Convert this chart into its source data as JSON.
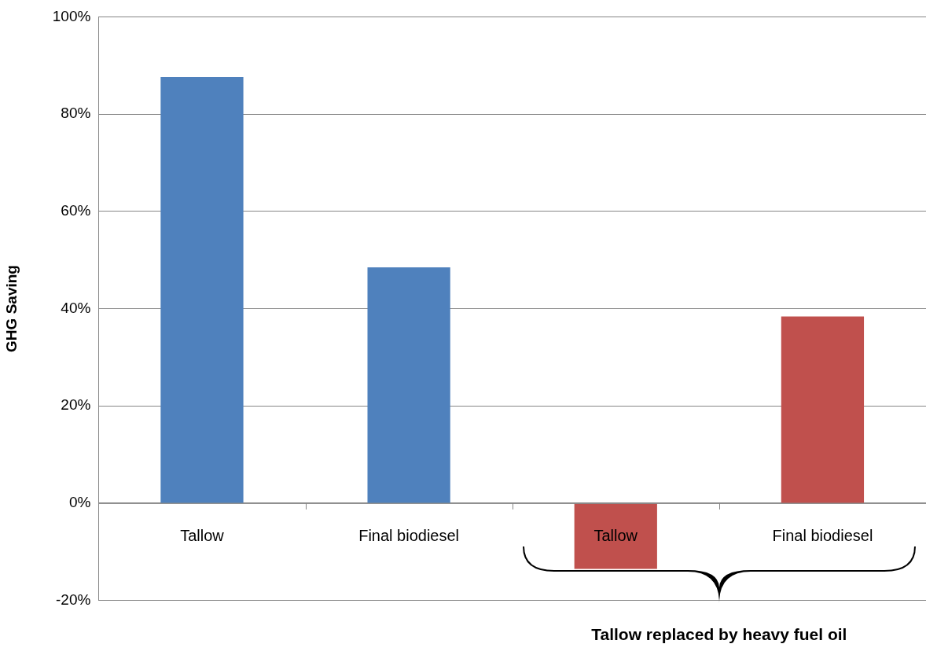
{
  "chart_data": {
    "type": "bar",
    "ylabel": "GHG Saving",
    "categories": [
      "Tallow",
      "Final biodiesel",
      "Tallow",
      "Final biodiesel"
    ],
    "values": [
      87.6,
      48.5,
      -13.5,
      38.4
    ],
    "colors": [
      "#4f81bd",
      "#4f81bd",
      "#c0504d",
      "#c0504d"
    ],
    "ylim": [
      -20,
      100
    ],
    "yticks": [
      {
        "value": -20,
        "label": "-20%"
      },
      {
        "value": 0,
        "label": "0%"
      },
      {
        "value": 20,
        "label": "20%"
      },
      {
        "value": 40,
        "label": "40%"
      },
      {
        "value": 60,
        "label": "60%"
      },
      {
        "value": 80,
        "label": "80%"
      },
      {
        "value": 100,
        "label": "100%"
      }
    ],
    "grid": "y",
    "legend": false,
    "annotations": [
      "Tallow replaced by heavy fuel oil"
    ]
  }
}
